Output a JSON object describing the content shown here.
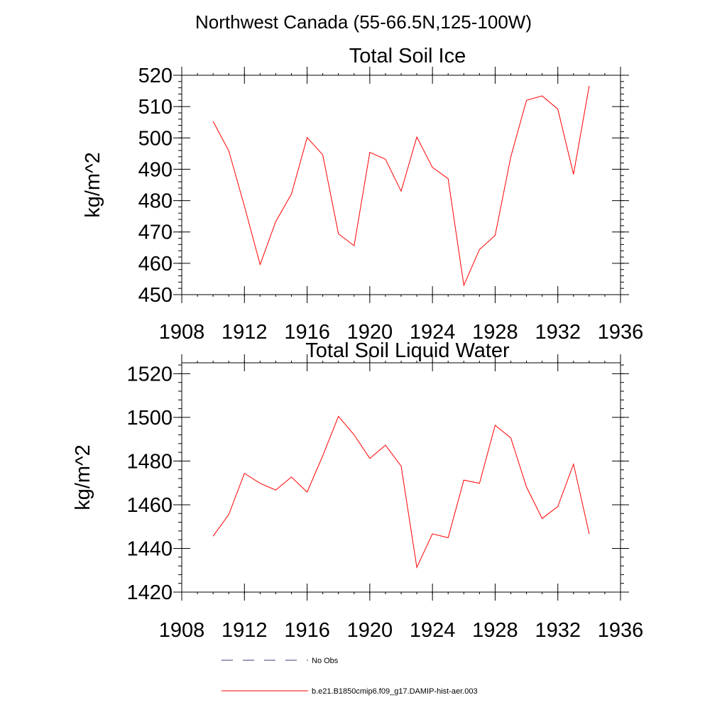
{
  "figure": {
    "title": "Northwest Canada (55-66.5N,125-100W)"
  },
  "chart_data": [
    {
      "type": "line",
      "title": "Total Soil Ice",
      "xlabel": "",
      "ylabel": "kg/m^2",
      "xlim": [
        1908,
        1936
      ],
      "ylim": [
        450,
        520
      ],
      "xticks": [
        1908,
        1912,
        1916,
        1920,
        1924,
        1928,
        1932,
        1936
      ],
      "xtick_labels": [
        "1908",
        "1912",
        "1916",
        "1920",
        "1924",
        "1928",
        "1932",
        "1936"
      ],
      "yticks": [
        450,
        460,
        470,
        480,
        490,
        500,
        510,
        520
      ],
      "ytick_labels": [
        "450",
        "460",
        "470",
        "480",
        "490",
        "500",
        "510",
        "520"
      ],
      "grid": false,
      "series": [
        {
          "name": "b.e21.B1850cmip6.f09_g17.DAMIP-hist-aer.003",
          "color": "#ff0000",
          "x": [
            1910,
            1911,
            1912,
            1913,
            1914,
            1915,
            1916,
            1917,
            1918,
            1919,
            1920,
            1921,
            1922,
            1923,
            1924,
            1925,
            1926,
            1927,
            1928,
            1929,
            1930,
            1931,
            1932,
            1933,
            1934
          ],
          "y": [
            505.3,
            495.9,
            478.2,
            459.6,
            473.3,
            482.1,
            500.1,
            494.6,
            469.4,
            465.6,
            495.4,
            493.2,
            483.0,
            500.3,
            490.6,
            487.0,
            453.0,
            464.4,
            468.9,
            494.0,
            512.0,
            513.4,
            509.2,
            488.4,
            516.6
          ]
        }
      ]
    },
    {
      "type": "line",
      "title": "Total Soil Liquid Water",
      "xlabel": "",
      "ylabel": "kg/m^2",
      "xlim": [
        1908,
        1936
      ],
      "ylim": [
        1420,
        1525
      ],
      "xticks": [
        1908,
        1912,
        1916,
        1920,
        1924,
        1928,
        1932,
        1936
      ],
      "xtick_labels": [
        "1908",
        "1912",
        "1916",
        "1920",
        "1924",
        "1928",
        "1932",
        "1936"
      ],
      "yticks": [
        1420,
        1440,
        1460,
        1480,
        1500,
        1520
      ],
      "ytick_labels": [
        "1420",
        "1440",
        "1460",
        "1480",
        "1500",
        "1520"
      ],
      "grid": false,
      "series": [
        {
          "name": "b.e21.B1850cmip6.f09_g17.DAMIP-hist-aer.003",
          "color": "#ff0000",
          "x": [
            1910,
            1911,
            1912,
            1913,
            1914,
            1915,
            1916,
            1917,
            1918,
            1919,
            1920,
            1921,
            1922,
            1923,
            1924,
            1925,
            1926,
            1927,
            1928,
            1929,
            1930,
            1931,
            1932,
            1933,
            1934
          ],
          "y": [
            1445.6,
            1455.5,
            1474.4,
            1469.8,
            1466.7,
            1472.7,
            1465.8,
            1482.4,
            1500.5,
            1492.0,
            1481.2,
            1487.3,
            1477.7,
            1431.3,
            1446.7,
            1444.9,
            1471.3,
            1469.8,
            1496.4,
            1490.6,
            1468.1,
            1453.7,
            1459.2,
            1478.6,
            1446.7
          ]
        }
      ]
    }
  ],
  "legend": {
    "placement": "bottom",
    "entries": [
      {
        "label": "No Obs",
        "style": "dashed",
        "color": "#3a3a7a"
      },
      {
        "label": "b.e21.B1850cmip6.f09_g17.DAMIP-hist-aer.003",
        "style": "solid",
        "color": "#ff0000"
      }
    ]
  }
}
